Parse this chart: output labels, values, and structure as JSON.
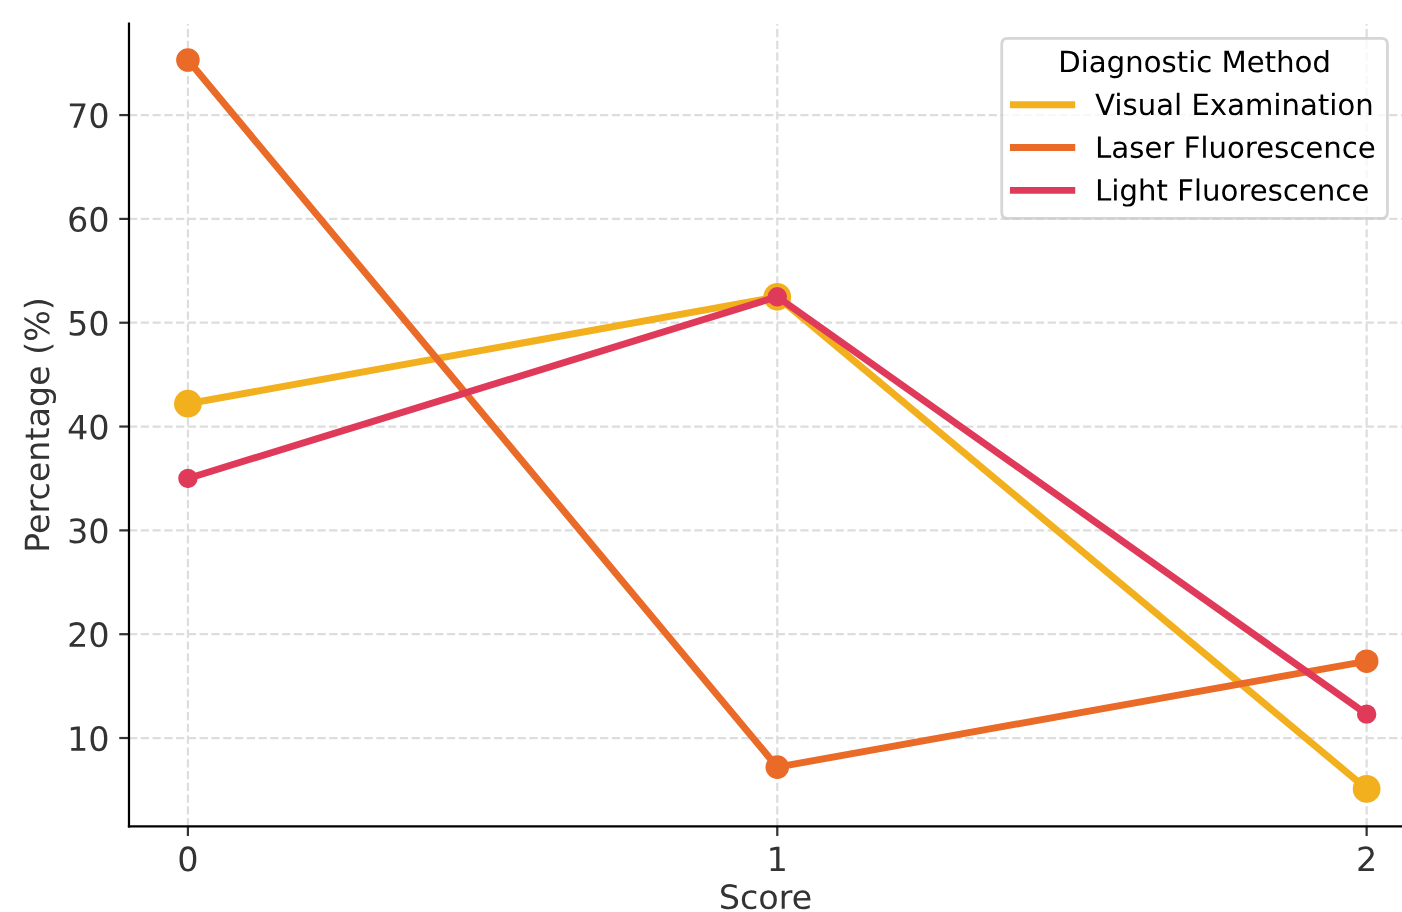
{
  "chart_data": {
    "type": "line",
    "xlabel": "Score",
    "ylabel": "Percentage (%)",
    "legend_title": "Diagnostic Method",
    "x": [
      0,
      1,
      2
    ],
    "series": [
      {
        "name": "Visual Examination",
        "color": "#f2b01e",
        "values": [
          42.2,
          52.5,
          5.1
        ]
      },
      {
        "name": "Laser Fluorescence",
        "color": "#ea6a27",
        "values": [
          75.3,
          7.2,
          17.4
        ]
      },
      {
        "name": "Light Fluorescence",
        "color": "#e03a5a",
        "values": [
          35.0,
          52.5,
          12.3
        ]
      }
    ],
    "xlim": [
      -0.1,
      2.06
    ],
    "ylim": [
      1.5,
      78.8
    ],
    "xticks": [
      0,
      1,
      2
    ],
    "yticks": [
      10,
      20,
      30,
      40,
      50,
      60,
      70
    ],
    "grid": true,
    "legend": "top right",
    "marker": "circle",
    "line_style": "solid"
  }
}
